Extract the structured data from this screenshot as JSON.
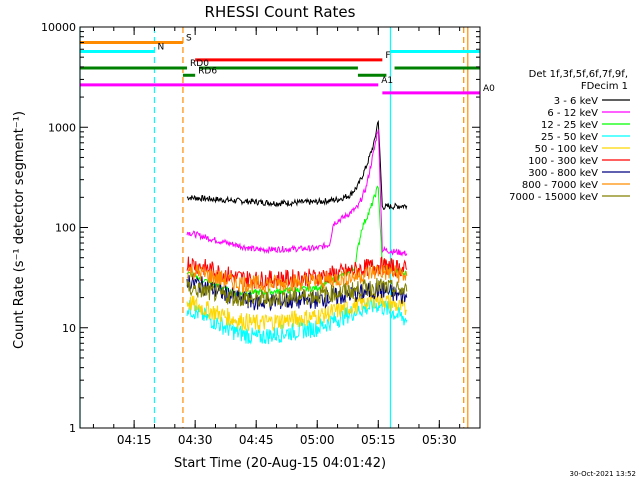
{
  "chart_data": {
    "type": "line",
    "title": "RHESSI Count Rates",
    "xlabel": "Start Time (20-Aug-15 04:01:42)",
    "ylabel": "Count Rate (s⁻¹ detector segment⁻¹)",
    "yscale": "log",
    "ylim": [
      1,
      10000
    ],
    "xlim": [
      "04:01:42",
      "05:40:00"
    ],
    "y_ticks": [
      "1",
      "10",
      "100",
      "1000",
      "10000"
    ],
    "x_ticks": [
      "04:15",
      "04:30",
      "04:45",
      "05:00",
      "05:15",
      "05:30"
    ],
    "legend": {
      "placement": "right",
      "header": [
        "Det 1f,3f,5f,6f,7f,9f,",
        "FDecim 1"
      ]
    },
    "series": [
      {
        "name": "3 - 6 keV",
        "color": "#000000",
        "points": [
          [
            "04:28",
            200
          ],
          [
            "04:40",
            185
          ],
          [
            "04:50",
            175
          ],
          [
            "05:00",
            180
          ],
          [
            "05:05",
            190
          ],
          [
            "05:08",
            210
          ],
          [
            "05:10",
            260
          ],
          [
            "05:12",
            400
          ],
          [
            "05:14",
            700
          ],
          [
            "05:15",
            1200
          ],
          [
            "05:16",
            160
          ],
          [
            "05:22",
            165
          ]
        ]
      },
      {
        "name": "6 - 12 keV",
        "color": "#ff00ff",
        "points": [
          [
            "04:28",
            90
          ],
          [
            "04:35",
            75
          ],
          [
            "04:45",
            60
          ],
          [
            "05:00",
            62
          ],
          [
            "05:03",
            68
          ],
          [
            "05:04",
            110
          ],
          [
            "05:07",
            130
          ],
          [
            "05:10",
            160
          ],
          [
            "05:12",
            250
          ],
          [
            "05:14",
            600
          ],
          [
            "05:15",
            1000
          ],
          [
            "05:16",
            60
          ],
          [
            "05:22",
            55
          ]
        ]
      },
      {
        "name": "12 - 25 keV",
        "color": "#00ff00",
        "points": [
          [
            "04:28",
            35
          ],
          [
            "04:40",
            22
          ],
          [
            "04:50",
            23
          ],
          [
            "05:00",
            25
          ],
          [
            "05:09",
            38
          ],
          [
            "05:11",
            100
          ],
          [
            "05:13",
            150
          ],
          [
            "05:15",
            260
          ],
          [
            "05:16",
            40
          ],
          [
            "05:22",
            35
          ]
        ]
      },
      {
        "name": "25 - 50 keV",
        "color": "#00ffff",
        "points": [
          [
            "04:28",
            16
          ],
          [
            "04:40",
            9
          ],
          [
            "04:45",
            8
          ],
          [
            "05:00",
            10
          ],
          [
            "05:10",
            15
          ],
          [
            "05:15",
            17
          ],
          [
            "05:22",
            12
          ]
        ]
      },
      {
        "name": "50 - 100 keV",
        "color": "#ffd700",
        "points": [
          [
            "04:28",
            18
          ],
          [
            "04:40",
            12
          ],
          [
            "04:45",
            11
          ],
          [
            "05:00",
            13
          ],
          [
            "05:10",
            17
          ],
          [
            "05:15",
            20
          ],
          [
            "05:22",
            15
          ]
        ]
      },
      {
        "name": "100 - 300 keV",
        "color": "#ff0000",
        "points": [
          [
            "04:28",
            45
          ],
          [
            "04:40",
            32
          ],
          [
            "04:45",
            30
          ],
          [
            "05:00",
            32
          ],
          [
            "05:10",
            38
          ],
          [
            "05:15",
            42
          ],
          [
            "05:22",
            38
          ]
        ]
      },
      {
        "name": "300 - 800 keV",
        "color": "#000080",
        "points": [
          [
            "04:28",
            30
          ],
          [
            "04:40",
            20
          ],
          [
            "04:45",
            18
          ],
          [
            "05:00",
            19
          ],
          [
            "05:10",
            22
          ],
          [
            "05:15",
            24
          ],
          [
            "05:22",
            20
          ]
        ]
      },
      {
        "name": "800 - 7000 keV",
        "color": "#ff8c00",
        "points": [
          [
            "04:28",
            38
          ],
          [
            "04:40",
            28
          ],
          [
            "04:45",
            27
          ],
          [
            "05:00",
            29
          ],
          [
            "05:10",
            33
          ],
          [
            "05:15",
            37
          ],
          [
            "05:22",
            33
          ]
        ]
      },
      {
        "name": "7000 - 15000 keV",
        "color": "#808000",
        "points": [
          [
            "04:28",
            25
          ],
          [
            "04:40",
            20
          ],
          [
            "04:45",
            19
          ],
          [
            "05:00",
            21
          ],
          [
            "05:10",
            24
          ],
          [
            "05:15",
            26
          ],
          [
            "05:22",
            23
          ]
        ]
      }
    ],
    "flag_bars": [
      {
        "label": "S",
        "color": "#ff8c00",
        "y": 7000,
        "segments": [
          [
            "04:01:42",
            "04:27"
          ]
        ]
      },
      {
        "label": "N",
        "color": "#00ffff",
        "y": 5700,
        "segments": [
          [
            "04:01:42",
            "04:20"
          ],
          [
            "05:18",
            "05:40"
          ]
        ]
      },
      {
        "label": "F",
        "color": "#ff0000",
        "y": 4700,
        "segments": [
          [
            "04:30",
            "05:16"
          ]
        ]
      },
      {
        "label": "RD0",
        "color": "#008000",
        "y": 3900,
        "segments": [
          [
            "04:01:42",
            "04:28"
          ],
          [
            "04:31",
            "05:10"
          ],
          [
            "05:19",
            "05:40"
          ]
        ]
      },
      {
        "label": "RD6",
        "color": "#008000",
        "y": 3300,
        "segments": [
          [
            "04:27",
            "04:30"
          ],
          [
            "05:10",
            "05:17"
          ]
        ]
      },
      {
        "label": "A1",
        "color": "#ff00ff",
        "y": 2650,
        "segments": [
          [
            "04:01:42",
            "05:15"
          ]
        ]
      },
      {
        "label": "A0",
        "color": "#ff00ff",
        "y": 2200,
        "segments": [
          [
            "05:16",
            "05:40"
          ]
        ]
      }
    ],
    "vertical_markers": [
      {
        "time": "04:01:42",
        "color": "#00ffff",
        "style": "solid"
      },
      {
        "time": "04:20",
        "color": "#00ffff",
        "style": "dashed"
      },
      {
        "time": "04:27",
        "color": "#ff8c00",
        "style": "dashed"
      },
      {
        "time": "05:18",
        "color": "#00ffff",
        "style": "solid"
      },
      {
        "time": "05:36",
        "color": "#ff8c00",
        "style": "dashed"
      },
      {
        "time": "05:37",
        "color": "#ff8c00",
        "style": "solid"
      }
    ]
  },
  "footer_timestamp": "30-Oct-2021 13:52"
}
